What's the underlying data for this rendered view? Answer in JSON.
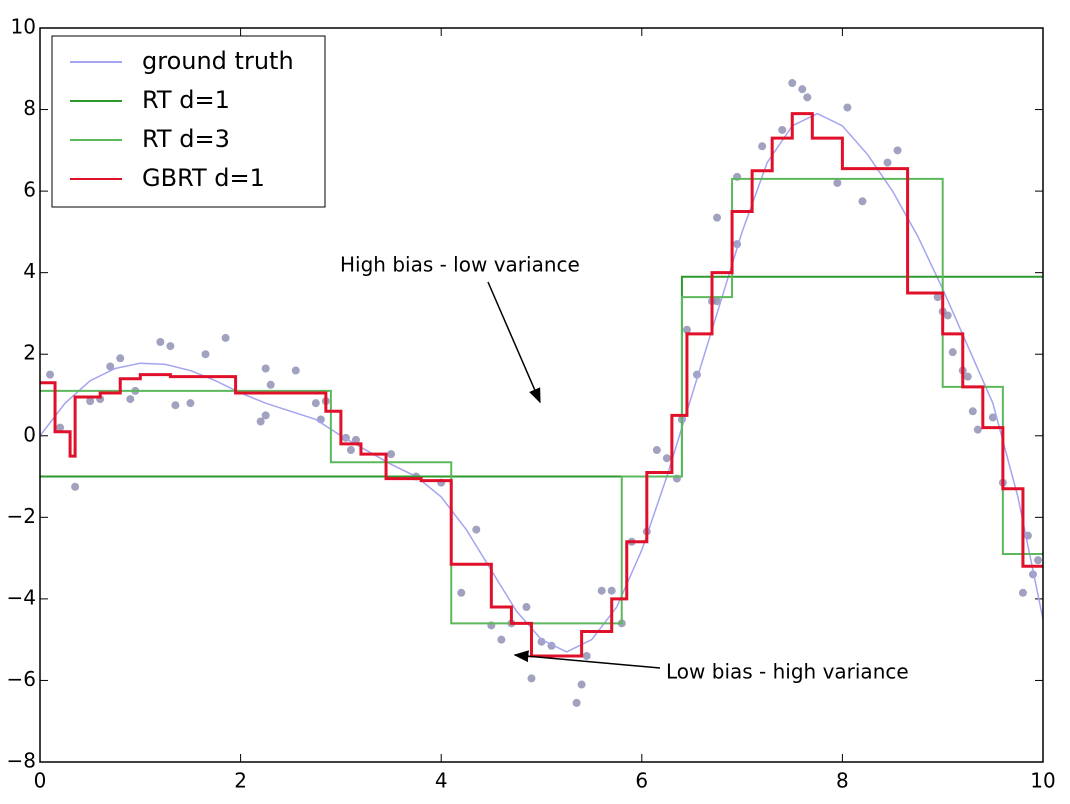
{
  "chart_data": {
    "type": "line",
    "xlim": [
      0,
      10
    ],
    "ylim": [
      -8,
      10
    ],
    "xticks": [
      0,
      2,
      4,
      6,
      8,
      10
    ],
    "yticks": [
      {
        "value": -8,
        "label": "−8"
      },
      {
        "value": -6,
        "label": "−6"
      },
      {
        "value": -4,
        "label": "−4"
      },
      {
        "value": -2,
        "label": "−2"
      },
      0,
      2,
      4,
      6,
      8,
      10
    ],
    "legend": "upper left",
    "series": [
      {
        "name": "ground truth",
        "color": "#a4a4f0",
        "drawstyle": "default",
        "x": [
          0,
          0.25,
          0.5,
          0.75,
          1,
          1.25,
          1.5,
          1.75,
          2,
          2.25,
          2.5,
          2.75,
          3,
          3.25,
          3.5,
          3.75,
          4,
          4.25,
          4.5,
          4.75,
          5,
          5.25,
          5.5,
          5.75,
          6,
          6.25,
          6.5,
          6.75,
          7,
          7.25,
          7.5,
          7.75,
          8,
          8.25,
          8.5,
          8.75,
          9,
          9.25,
          9.5,
          9.75,
          10
        ],
        "values": [
          0,
          0.8,
          1.35,
          1.65,
          1.78,
          1.75,
          1.6,
          1.35,
          1.05,
          0.8,
          0.6,
          0.4,
          0,
          -0.35,
          -0.7,
          -1,
          -1.5,
          -2.3,
          -3.3,
          -4.3,
          -5,
          -5.3,
          -5,
          -4.2,
          -2.8,
          -1,
          1,
          3,
          5,
          6.7,
          7.6,
          7.9,
          7.6,
          6.9,
          6,
          4.9,
          3.6,
          2.2,
          0.8,
          -1.5,
          -4.5
        ]
      },
      {
        "name": "RT d=1",
        "color": "#2e9a2e",
        "drawstyle": "steps-post",
        "x": [
          0,
          6.4,
          10
        ],
        "values": [
          -1,
          3.9,
          3.9
        ]
      },
      {
        "name": "RT d=3",
        "color": "#5cb85c",
        "drawstyle": "steps-post",
        "x": [
          0,
          2.9,
          4.1,
          5.8,
          6.4,
          6.9,
          9,
          9.6,
          10
        ],
        "values": [
          1.1,
          -0.65,
          -4.6,
          -1,
          3.4,
          6.3,
          1.2,
          -2.9,
          -2.9
        ]
      },
      {
        "name": "GBRT d=1",
        "color": "#e0102a",
        "drawstyle": "steps-post",
        "x": [
          0,
          0.15,
          0.3,
          0.35,
          0.6,
          0.8,
          1,
          1.3,
          1.95,
          2.85,
          3,
          3.2,
          3.45,
          3.8,
          4.1,
          4.5,
          4.7,
          4.9,
          5.4,
          5.7,
          5.85,
          6.05,
          6.3,
          6.45,
          6.7,
          6.9,
          7.1,
          7.3,
          7.5,
          7.7,
          8,
          8.65,
          9,
          9.2,
          9.4,
          9.6,
          9.8,
          10
        ],
        "values": [
          1.3,
          0.1,
          -0.5,
          0.95,
          1.05,
          1.4,
          1.5,
          1.45,
          1.05,
          0.6,
          -0.2,
          -0.45,
          -1.05,
          -1.1,
          -3.15,
          -4.2,
          -4.6,
          -5.4,
          -4.8,
          -4,
          -2.6,
          -0.9,
          0.5,
          2.5,
          4,
          5.5,
          6.5,
          7.3,
          7.9,
          7.3,
          6.55,
          3.5,
          2.5,
          1.2,
          0.2,
          -1.3,
          -3.2,
          -3.2
        ]
      }
    ],
    "scatter": {
      "color": "#8a8ab0",
      "x": [
        0.1,
        0.2,
        0.35,
        0.5,
        0.6,
        0.7,
        0.8,
        0.9,
        0.95,
        1.2,
        1.3,
        1.35,
        1.5,
        1.65,
        1.85,
        2.2,
        2.25,
        2.25,
        2.3,
        2.55,
        2.75,
        2.8,
        2.85,
        3.05,
        3.1,
        3.15,
        3.5,
        3.75,
        4,
        4.2,
        4.35,
        4.5,
        4.6,
        4.7,
        4.85,
        4.9,
        5,
        5.1,
        5.35,
        5.4,
        5.45,
        5.6,
        5.7,
        5.8,
        5.9,
        6.05,
        6.15,
        6.25,
        6.35,
        6.4,
        6.45,
        6.55,
        6.7,
        6.75,
        6.75,
        6.95,
        6.95,
        7.2,
        7.4,
        7.5,
        7.6,
        7.65,
        7.95,
        8.05,
        8.2,
        8.45,
        8.55,
        8.95,
        9,
        9.05,
        9.1,
        9.2,
        9.25,
        9.3,
        9.35,
        9.5,
        9.6,
        9.8,
        9.85,
        9.9,
        9.95
      ],
      "y": [
        1.5,
        0.2,
        -1.25,
        0.85,
        0.9,
        1.7,
        1.9,
        0.9,
        1.1,
        2.3,
        2.2,
        0.75,
        0.8,
        2,
        2.4,
        0.35,
        1.65,
        0.5,
        1.25,
        1.6,
        0.8,
        0.4,
        0.85,
        -0.05,
        -0.35,
        -0.1,
        -0.45,
        -1,
        -1.15,
        -3.85,
        -2.3,
        -4.65,
        -5,
        -4.6,
        -4.2,
        -5.95,
        -5.05,
        -5.15,
        -6.55,
        -6.1,
        -5.4,
        -3.8,
        -3.8,
        -4.6,
        -2.6,
        -2.35,
        -0.35,
        -0.55,
        -1.05,
        0.4,
        2.6,
        1.5,
        3.3,
        3.3,
        5.35,
        6.35,
        4.7,
        7.1,
        7.5,
        8.65,
        8.5,
        8.3,
        6.2,
        8.05,
        5.75,
        6.7,
        7,
        3.4,
        3.05,
        2.95,
        2.05,
        1.6,
        1.45,
        0.6,
        0.15,
        0.45,
        -1.15,
        -3.85,
        -2.45,
        -3.4,
        -3.05
      ]
    },
    "annotations": [
      "High bias - low variance",
      "Low bias - high variance"
    ]
  }
}
